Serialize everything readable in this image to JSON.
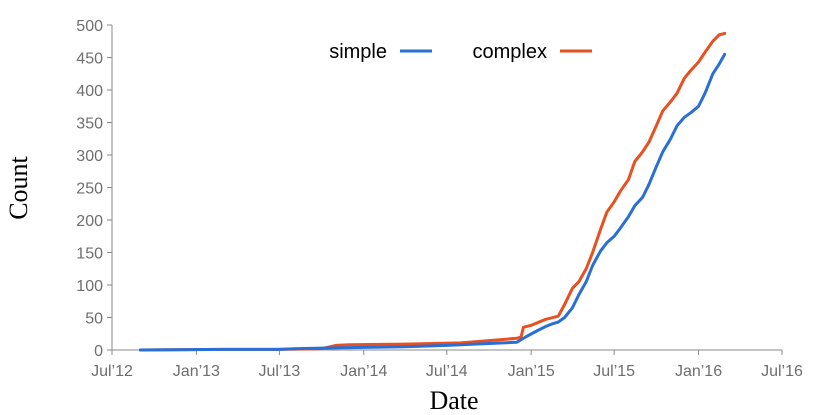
{
  "chart_data": {
    "type": "line",
    "title": "",
    "xlabel": "Date",
    "ylabel": "Count",
    "ylim": [
      0,
      500
    ],
    "yticks": [
      0,
      50,
      100,
      150,
      200,
      250,
      300,
      350,
      400,
      450,
      500
    ],
    "xlim": [
      "2012-07-01",
      "2016-07-01"
    ],
    "xticks": [
      {
        "date": "2012-07-01",
        "label": "Jul’12"
      },
      {
        "date": "2013-01-01",
        "label": "Jan’13"
      },
      {
        "date": "2013-07-01",
        "label": "Jul’13"
      },
      {
        "date": "2014-01-01",
        "label": "Jan’14"
      },
      {
        "date": "2014-07-01",
        "label": "Jul’14"
      },
      {
        "date": "2015-01-01",
        "label": "Jan’15"
      },
      {
        "date": "2015-07-01",
        "label": "Jul’15"
      },
      {
        "date": "2016-01-01",
        "label": "Jan’16"
      },
      {
        "date": "2016-07-01",
        "label": "Jul’16"
      }
    ],
    "grid": false,
    "legend_position": "top-center",
    "series": [
      {
        "name": "simple",
        "color": "#2a6fd6",
        "points": [
          [
            "2012-09-01",
            0
          ],
          [
            "2013-03-01",
            1
          ],
          [
            "2013-07-01",
            1
          ],
          [
            "2013-08-01",
            2
          ],
          [
            "2013-10-01",
            3
          ],
          [
            "2014-01-01",
            4
          ],
          [
            "2014-04-01",
            5
          ],
          [
            "2014-07-01",
            7
          ],
          [
            "2014-10-01",
            10
          ],
          [
            "2014-12-01",
            12
          ],
          [
            "2014-12-20",
            20
          ],
          [
            "2015-01-15",
            30
          ],
          [
            "2015-02-01",
            36
          ],
          [
            "2015-02-15",
            40
          ],
          [
            "2015-03-01",
            43
          ],
          [
            "2015-03-15",
            50
          ],
          [
            "2015-04-01",
            65
          ],
          [
            "2015-04-15",
            85
          ],
          [
            "2015-05-01",
            105
          ],
          [
            "2015-05-15",
            130
          ],
          [
            "2015-06-01",
            152
          ],
          [
            "2015-06-15",
            165
          ],
          [
            "2015-07-01",
            175
          ],
          [
            "2015-07-15",
            188
          ],
          [
            "2015-08-01",
            205
          ],
          [
            "2015-08-15",
            222
          ],
          [
            "2015-09-01",
            235
          ],
          [
            "2015-09-15",
            255
          ],
          [
            "2015-10-01",
            282
          ],
          [
            "2015-10-15",
            305
          ],
          [
            "2015-11-01",
            325
          ],
          [
            "2015-11-15",
            345
          ],
          [
            "2015-12-01",
            358
          ],
          [
            "2015-12-15",
            365
          ],
          [
            "2016-01-01",
            375
          ],
          [
            "2016-01-15",
            395
          ],
          [
            "2016-02-01",
            425
          ],
          [
            "2016-02-15",
            440
          ],
          [
            "2016-02-27",
            455
          ]
        ]
      },
      {
        "name": "complex",
        "color": "#e8501f",
        "points": [
          [
            "2012-09-01",
            0
          ],
          [
            "2013-03-01",
            1
          ],
          [
            "2013-07-01",
            1
          ],
          [
            "2013-10-01",
            2
          ],
          [
            "2013-11-01",
            7
          ],
          [
            "2013-12-01",
            8
          ],
          [
            "2014-04-01",
            9
          ],
          [
            "2014-08-01",
            11
          ],
          [
            "2014-12-01",
            18
          ],
          [
            "2014-12-10",
            20
          ],
          [
            "2014-12-15",
            35
          ],
          [
            "2015-01-01",
            38
          ],
          [
            "2015-01-15",
            42
          ],
          [
            "2015-02-01",
            47
          ],
          [
            "2015-03-01",
            52
          ],
          [
            "2015-03-15",
            70
          ],
          [
            "2015-04-01",
            95
          ],
          [
            "2015-04-15",
            105
          ],
          [
            "2015-05-01",
            125
          ],
          [
            "2015-05-15",
            150
          ],
          [
            "2015-06-01",
            185
          ],
          [
            "2015-06-15",
            212
          ],
          [
            "2015-07-01",
            228
          ],
          [
            "2015-07-15",
            245
          ],
          [
            "2015-08-01",
            262
          ],
          [
            "2015-08-15",
            290
          ],
          [
            "2015-09-01",
            305
          ],
          [
            "2015-09-15",
            320
          ],
          [
            "2015-10-01",
            345
          ],
          [
            "2015-10-15",
            368
          ],
          [
            "2015-11-01",
            382
          ],
          [
            "2015-11-15",
            395
          ],
          [
            "2015-12-01",
            418
          ],
          [
            "2015-12-15",
            430
          ],
          [
            "2016-01-01",
            443
          ],
          [
            "2016-01-15",
            458
          ],
          [
            "2016-02-01",
            475
          ],
          [
            "2016-02-15",
            485
          ],
          [
            "2016-02-27",
            487
          ]
        ]
      }
    ]
  }
}
